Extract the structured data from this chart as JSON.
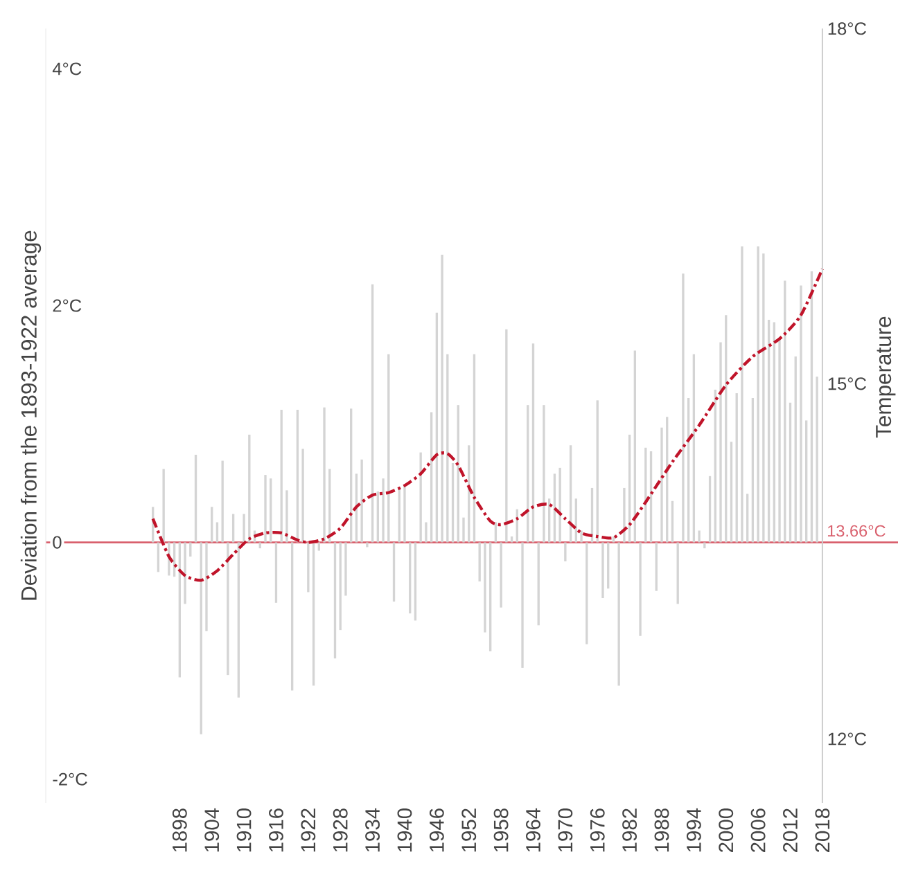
{
  "chart_data": {
    "type": "bar",
    "ylabel": "Deviation from the 1893-1922 average",
    "y2label": "Temperature",
    "x": [
      1893,
      1894,
      1895,
      1896,
      1897,
      1898,
      1899,
      1900,
      1901,
      1902,
      1903,
      1904,
      1905,
      1906,
      1907,
      1908,
      1909,
      1910,
      1911,
      1912,
      1913,
      1914,
      1915,
      1916,
      1917,
      1918,
      1919,
      1920,
      1921,
      1922,
      1923,
      1924,
      1925,
      1926,
      1927,
      1928,
      1929,
      1930,
      1931,
      1932,
      1933,
      1934,
      1935,
      1936,
      1937,
      1938,
      1939,
      1940,
      1941,
      1942,
      1943,
      1944,
      1945,
      1946,
      1947,
      1948,
      1949,
      1950,
      1951,
      1952,
      1953,
      1954,
      1955,
      1956,
      1957,
      1958,
      1959,
      1960,
      1961,
      1962,
      1963,
      1964,
      1965,
      1966,
      1967,
      1968,
      1969,
      1970,
      1971,
      1972,
      1973,
      1974,
      1975,
      1976,
      1977,
      1978,
      1979,
      1980,
      1981,
      1982,
      1983,
      1984,
      1985,
      1986,
      1987,
      1988,
      1989,
      1990,
      1991,
      1992,
      1993,
      1994,
      1995,
      1996,
      1997,
      1998,
      1999,
      2000,
      2001,
      2002,
      2003,
      2004,
      2005,
      2006,
      2007,
      2008,
      2009,
      2010,
      2011,
      2012,
      2013,
      2014,
      2015,
      2016,
      2017
    ],
    "xlim": [
      1873,
      2018
    ],
    "xticks": [
      1898,
      1904,
      1910,
      1916,
      1922,
      1928,
      1934,
      1940,
      1946,
      1952,
      1958,
      1964,
      1970,
      1976,
      1982,
      1988,
      1994,
      2000,
      2006,
      2012,
      2018
    ],
    "ylim": [
      -2.2,
      4.34
    ],
    "yticks": [
      {
        "value": 4,
        "label": "4°C"
      },
      {
        "value": 2,
        "label": "2°C"
      },
      0,
      {
        "value": -2,
        "label": "-2°C"
      }
    ],
    "y2lim": [
      11.46,
      18
    ],
    "y2ticks": [
      {
        "value": 18,
        "label": "18°C"
      },
      {
        "value": 15,
        "label": "15°C"
      },
      {
        "value": 12,
        "label": "12°C"
      }
    ],
    "series": [
      {
        "type": "bar",
        "color": "#d4d4d4",
        "values": [
          0.3,
          -0.25,
          0.62,
          -0.28,
          -0.29,
          -1.14,
          -0.52,
          -0.12,
          0.74,
          -1.62,
          -0.75,
          0.3,
          0.17,
          0.69,
          -1.12,
          0.24,
          -1.31,
          0.24,
          0.91,
          0.1,
          -0.05,
          0.57,
          0.54,
          -0.51,
          1.12,
          0.44,
          -1.25,
          1.12,
          0.79,
          -0.42,
          -1.21,
          -0.07,
          1.14,
          0.62,
          -0.98,
          -0.74,
          -0.45,
          1.13,
          0.58,
          0.7,
          -0.04,
          2.18,
          0.43,
          0.54,
          1.59,
          -0.5,
          0.46,
          0.48,
          -0.6,
          -0.66,
          0.76,
          0.17,
          1.1,
          1.94,
          2.43,
          1.59,
          0.67,
          1.16,
          0.21,
          0.82,
          1.59,
          -0.33,
          -0.76,
          -0.92,
          0.17,
          -0.55,
          1.8,
          0.05,
          0.28,
          -1.06,
          1.16,
          1.68,
          -0.7,
          1.16,
          0.37,
          0.58,
          0.63,
          -0.16,
          0.82,
          0.37,
          0.1,
          -0.86,
          0.46,
          1.2,
          -0.47,
          -0.39,
          0.05,
          -1.21,
          0.46,
          0.91,
          1.62,
          -0.79,
          0.8,
          0.77,
          -0.41,
          0.97,
          1.06,
          0.35,
          -0.52,
          2.27,
          1.22,
          1.59,
          0.1,
          -0.05,
          0.56,
          1.29,
          1.69,
          1.92,
          0.85,
          1.26,
          2.5,
          0.41,
          1.22,
          2.5,
          2.44,
          1.88,
          1.86,
          1.72,
          2.21,
          1.18,
          1.57,
          2.17,
          1.03,
          2.29,
          1.4
        ]
      },
      {
        "type": "line",
        "color": "#c0142a",
        "line_style": "dashed",
        "x": [
          1893,
          1896,
          1899,
          1902,
          1905,
          1908,
          1911,
          1914,
          1917,
          1920,
          1922,
          1925,
          1928,
          1931,
          1934,
          1937,
          1940,
          1943,
          1946,
          1948,
          1950,
          1953,
          1956,
          1958,
          1961,
          1964,
          1967,
          1970,
          1973,
          1976,
          1979,
          1982,
          1985,
          1990,
          1995,
          2000,
          2005,
          2010,
          2014,
          2018
        ],
        "values": [
          0.2,
          -0.12,
          -0.28,
          -0.32,
          -0.24,
          -0.1,
          0.03,
          0.08,
          0.08,
          0.02,
          0,
          0.03,
          0.12,
          0.3,
          0.4,
          0.42,
          0.48,
          0.58,
          0.74,
          0.75,
          0.65,
          0.38,
          0.18,
          0.15,
          0.2,
          0.3,
          0.32,
          0.2,
          0.08,
          0.05,
          0.04,
          0.15,
          0.34,
          0.68,
          0.99,
          1.33,
          1.57,
          1.72,
          1.92,
          2.31
        ]
      }
    ],
    "ref_lines": [
      {
        "axis": "y2",
        "value": 13.66,
        "label": "13.66°C",
        "color": "#d9606d"
      }
    ]
  }
}
